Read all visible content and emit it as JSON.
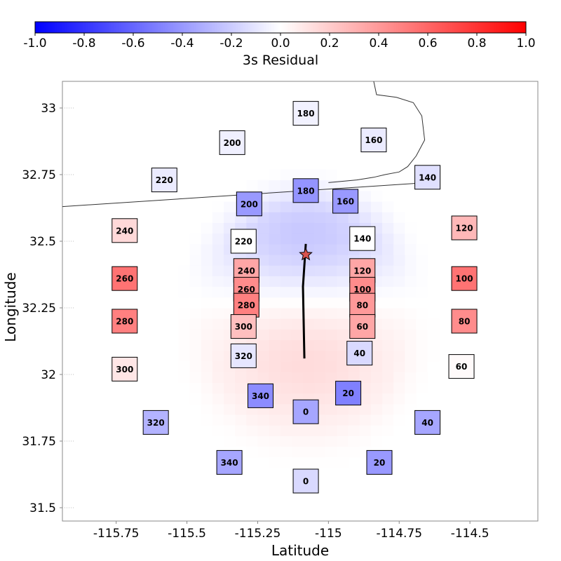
{
  "chart_data": {
    "type": "heatmap",
    "xlabel": "Latitude",
    "ylabel": "Longitude",
    "xlim": [
      -115.94,
      -114.26
    ],
    "ylim": [
      31.45,
      33.1
    ],
    "x_ticks": [
      -115.75,
      -115.5,
      -115.25,
      -115,
      -114.75,
      -114.5
    ],
    "x_tick_labels": [
      "-115.75",
      "-115.5",
      "-115.25",
      "-115",
      "-114.75",
      "-114.5"
    ],
    "y_ticks": [
      31.5,
      31.75,
      32,
      32.25,
      32.5,
      32.75,
      33
    ],
    "y_tick_labels": [
      "31.5",
      "31.75",
      "32",
      "32.25",
      "32.5",
      "32.75",
      "33"
    ],
    "colorbar": {
      "label": "3s Residual",
      "range": [
        -1.0,
        1.0
      ],
      "ticks": [
        -1.0,
        -0.8,
        -0.6,
        -0.4,
        -0.2,
        0.0,
        0.2,
        0.4,
        0.6,
        0.8,
        1.0
      ],
      "tick_labels": [
        "-1.0",
        "-0.8",
        "-0.6",
        "-0.4",
        "-0.2",
        "0.0",
        "0.2",
        "0.4",
        "0.6",
        "0.8",
        "1.0"
      ],
      "colors": {
        "negative": "#0000ff",
        "zero": "#ffffff",
        "positive": "#ff0000"
      }
    },
    "grid": false,
    "residual_field": {
      "center": [
        -115.08,
        32.2
      ],
      "neg_zone": {
        "center": [
          -115.08,
          32.52
        ],
        "peak": -0.22
      },
      "pos_zone": {
        "center": [
          -115.08,
          32.05
        ],
        "peak": 0.14
      },
      "extent_x": [
        -115.57,
        -114.62
      ],
      "extent_y": [
        31.65,
        32.8
      ]
    },
    "stations": [
      {
        "label": "180",
        "lon": -115.08,
        "lat": 32.98,
        "value": -0.05
      },
      {
        "label": "160",
        "lon": -114.84,
        "lat": 32.88,
        "value": -0.08
      },
      {
        "label": "200",
        "lon": -115.34,
        "lat": 32.87,
        "value": -0.06
      },
      {
        "label": "220",
        "lon": -115.58,
        "lat": 32.73,
        "value": -0.08
      },
      {
        "label": "140",
        "lon": -114.65,
        "lat": 32.74,
        "value": -0.12
      },
      {
        "label": "180",
        "lon": -115.08,
        "lat": 32.69,
        "value": -0.42
      },
      {
        "label": "160",
        "lon": -114.94,
        "lat": 32.65,
        "value": -0.4
      },
      {
        "label": "200",
        "lon": -115.28,
        "lat": 32.64,
        "value": -0.4
      },
      {
        "label": "240",
        "lon": -115.72,
        "lat": 32.54,
        "value": 0.15
      },
      {
        "label": "120",
        "lon": -114.52,
        "lat": 32.55,
        "value": 0.28
      },
      {
        "label": "220",
        "lon": -115.3,
        "lat": 32.5,
        "value": 0.0
      },
      {
        "label": "140",
        "lon": -114.88,
        "lat": 32.51,
        "value": 0.0
      },
      {
        "label": "240",
        "lon": -115.29,
        "lat": 32.39,
        "value": 0.35
      },
      {
        "label": "120",
        "lon": -114.88,
        "lat": 32.39,
        "value": 0.35
      },
      {
        "label": "260",
        "lon": -115.72,
        "lat": 32.36,
        "value": 0.55
      },
      {
        "label": "100",
        "lon": -114.52,
        "lat": 32.36,
        "value": 0.55
      },
      {
        "label": "260",
        "lon": -115.29,
        "lat": 32.32,
        "value": 0.45
      },
      {
        "label": "100",
        "lon": -114.88,
        "lat": 32.32,
        "value": 0.45
      },
      {
        "label": "280",
        "lon": -115.29,
        "lat": 32.26,
        "value": 0.5
      },
      {
        "label": "80",
        "lon": -114.88,
        "lat": 32.26,
        "value": 0.4
      },
      {
        "label": "280",
        "lon": -115.72,
        "lat": 32.2,
        "value": 0.5
      },
      {
        "label": "80",
        "lon": -114.52,
        "lat": 32.2,
        "value": 0.45
      },
      {
        "label": "300",
        "lon": -115.3,
        "lat": 32.18,
        "value": 0.25
      },
      {
        "label": "60",
        "lon": -114.88,
        "lat": 32.18,
        "value": 0.35
      },
      {
        "label": "320",
        "lon": -115.3,
        "lat": 32.07,
        "value": -0.1
      },
      {
        "label": "40",
        "lon": -114.89,
        "lat": 32.08,
        "value": -0.15
      },
      {
        "label": "300",
        "lon": -115.72,
        "lat": 32.02,
        "value": 0.1
      },
      {
        "label": "60",
        "lon": -114.53,
        "lat": 32.03,
        "value": 0.02
      },
      {
        "label": "340",
        "lon": -115.24,
        "lat": 31.92,
        "value": -0.45
      },
      {
        "label": "20",
        "lon": -114.93,
        "lat": 31.93,
        "value": -0.5
      },
      {
        "label": "0",
        "lon": -115.08,
        "lat": 31.86,
        "value": -0.35
      },
      {
        "label": "320",
        "lon": -115.61,
        "lat": 31.82,
        "value": -0.3
      },
      {
        "label": "40",
        "lon": -114.65,
        "lat": 31.82,
        "value": -0.35
      },
      {
        "label": "340",
        "lon": -115.35,
        "lat": 31.67,
        "value": -0.35
      },
      {
        "label": "20",
        "lon": -114.82,
        "lat": 31.67,
        "value": -0.4
      },
      {
        "label": "0",
        "lon": -115.08,
        "lat": 31.6,
        "value": -0.15
      }
    ],
    "fault_line": [
      [
        -115.08,
        32.49
      ],
      [
        -115.09,
        32.33
      ],
      [
        -115.085,
        32.06
      ]
    ],
    "epicenter": {
      "lon": -115.08,
      "lat": 32.45
    },
    "boundary_line": [
      [
        -115.94,
        32.63
      ],
      [
        -114.65,
        32.72
      ]
    ],
    "border_line": [
      [
        -114.84,
        33.1
      ],
      [
        -114.83,
        33.05
      ],
      [
        -114.76,
        33.04
      ],
      [
        -114.7,
        33.02
      ],
      [
        -114.67,
        32.97
      ],
      [
        -114.66,
        32.88
      ],
      [
        -114.69,
        32.82
      ],
      [
        -114.72,
        32.78
      ],
      [
        -114.75,
        32.76
      ],
      [
        -114.8,
        32.75
      ],
      [
        -114.84,
        32.74
      ],
      [
        -114.9,
        32.73
      ],
      [
        -115.0,
        32.72
      ]
    ]
  }
}
